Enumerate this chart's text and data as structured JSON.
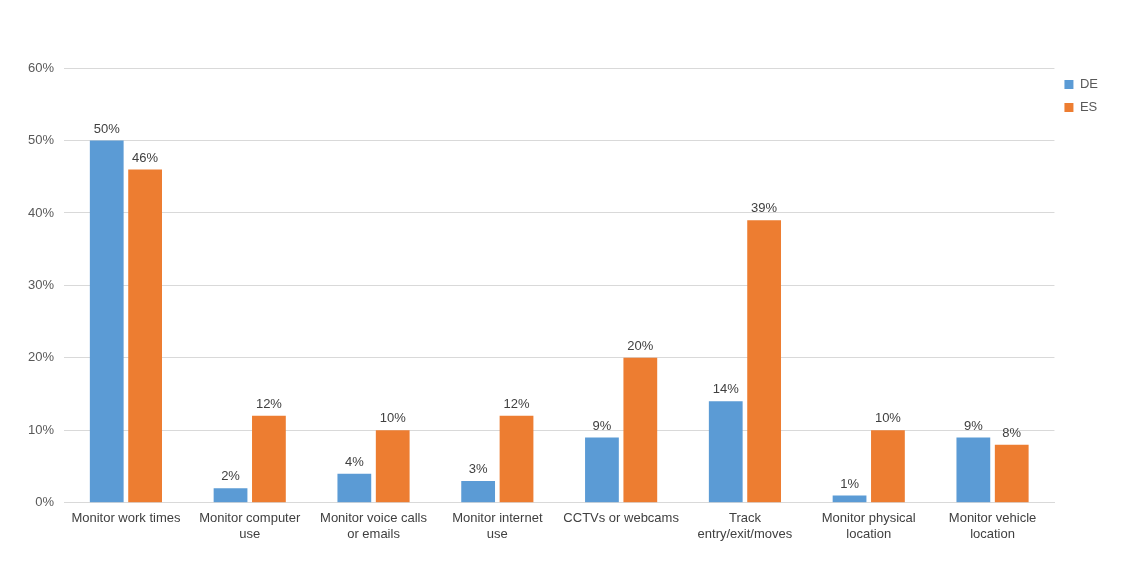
{
  "chart_data": {
    "type": "bar",
    "categories": [
      "Monitor work times",
      "Monitor computer use",
      "Monitor voice calls or emails",
      "Monitor internet use",
      "CCTVs or webcams",
      "Track entry/exit/moves",
      "Monitor physical location",
      "Monitor vehicle location"
    ],
    "series": [
      {
        "name": "DE",
        "color": "#5b9bd5",
        "values": [
          50,
          2,
          4,
          3,
          9,
          14,
          1,
          9
        ],
        "value_labels": [
          "50%",
          "2%",
          "4%",
          "3%",
          "9%",
          "14%",
          "1%",
          "9%"
        ]
      },
      {
        "name": "ES",
        "color": "#ed7d31",
        "values": [
          46,
          12,
          10,
          12,
          20,
          39,
          10,
          8
        ],
        "value_labels": [
          "46%",
          "12%",
          "10%",
          "12%",
          "20%",
          "39%",
          "10%",
          "8%"
        ]
      }
    ],
    "ylim": [
      0,
      60
    ],
    "yticks": [
      {
        "value": 0,
        "label": "0%"
      },
      {
        "value": 10,
        "label": "10%"
      },
      {
        "value": 20,
        "label": "20%"
      },
      {
        "value": 30,
        "label": "30%"
      },
      {
        "value": 40,
        "label": "40%"
      },
      {
        "value": 50,
        "label": "50%"
      },
      {
        "value": 60,
        "label": "60%"
      }
    ],
    "grid": "y",
    "legend": "top right"
  }
}
